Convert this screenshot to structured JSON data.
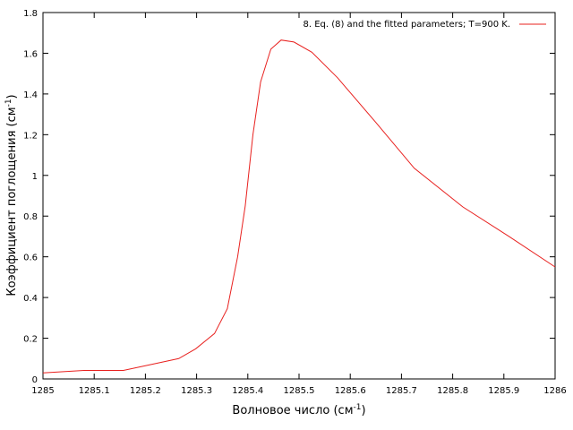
{
  "chart_data": {
    "type": "line",
    "title": "",
    "xlabel": "Волновое число (см",
    "xlabel_sup": "-1",
    "xlabel_tail": ")",
    "ylabel": "Коэффициент поглощения (см",
    "ylabel_sup": "-1",
    "ylabel_tail": ")",
    "xlim": [
      1285,
      1286
    ],
    "ylim": [
      0,
      1.8
    ],
    "xticks": [
      1285,
      1285.1,
      1285.2,
      1285.3,
      1285.4,
      1285.5,
      1285.6,
      1285.7,
      1285.8,
      1285.9,
      1286
    ],
    "yticks": [
      0,
      0.2,
      0.4,
      0.6,
      0.8,
      1,
      1.2,
      1.4,
      1.6,
      1.8
    ],
    "grid": false,
    "legend_position": "top-right",
    "series": [
      {
        "name": "8. Eq. (8) and the fitted parameters; T=900 K.",
        "color": "#e8201e",
        "x": [
          1285,
          1285.08,
          1285.157,
          1285.2,
          1285.265,
          1285.298,
          1285.335,
          1285.36,
          1285.38,
          1285.395,
          1285.41,
          1285.425,
          1285.445,
          1285.465,
          1285.49,
          1285.525,
          1285.575,
          1285.65,
          1285.725,
          1285.82,
          1285.91,
          1286
        ],
        "values": [
          0.03,
          0.042,
          0.042,
          0.065,
          0.1,
          0.148,
          0.223,
          0.345,
          0.6,
          0.85,
          1.2,
          1.46,
          1.62,
          1.665,
          1.655,
          1.605,
          1.48,
          1.26,
          1.035,
          0.845,
          0.7,
          0.55
        ]
      }
    ]
  }
}
